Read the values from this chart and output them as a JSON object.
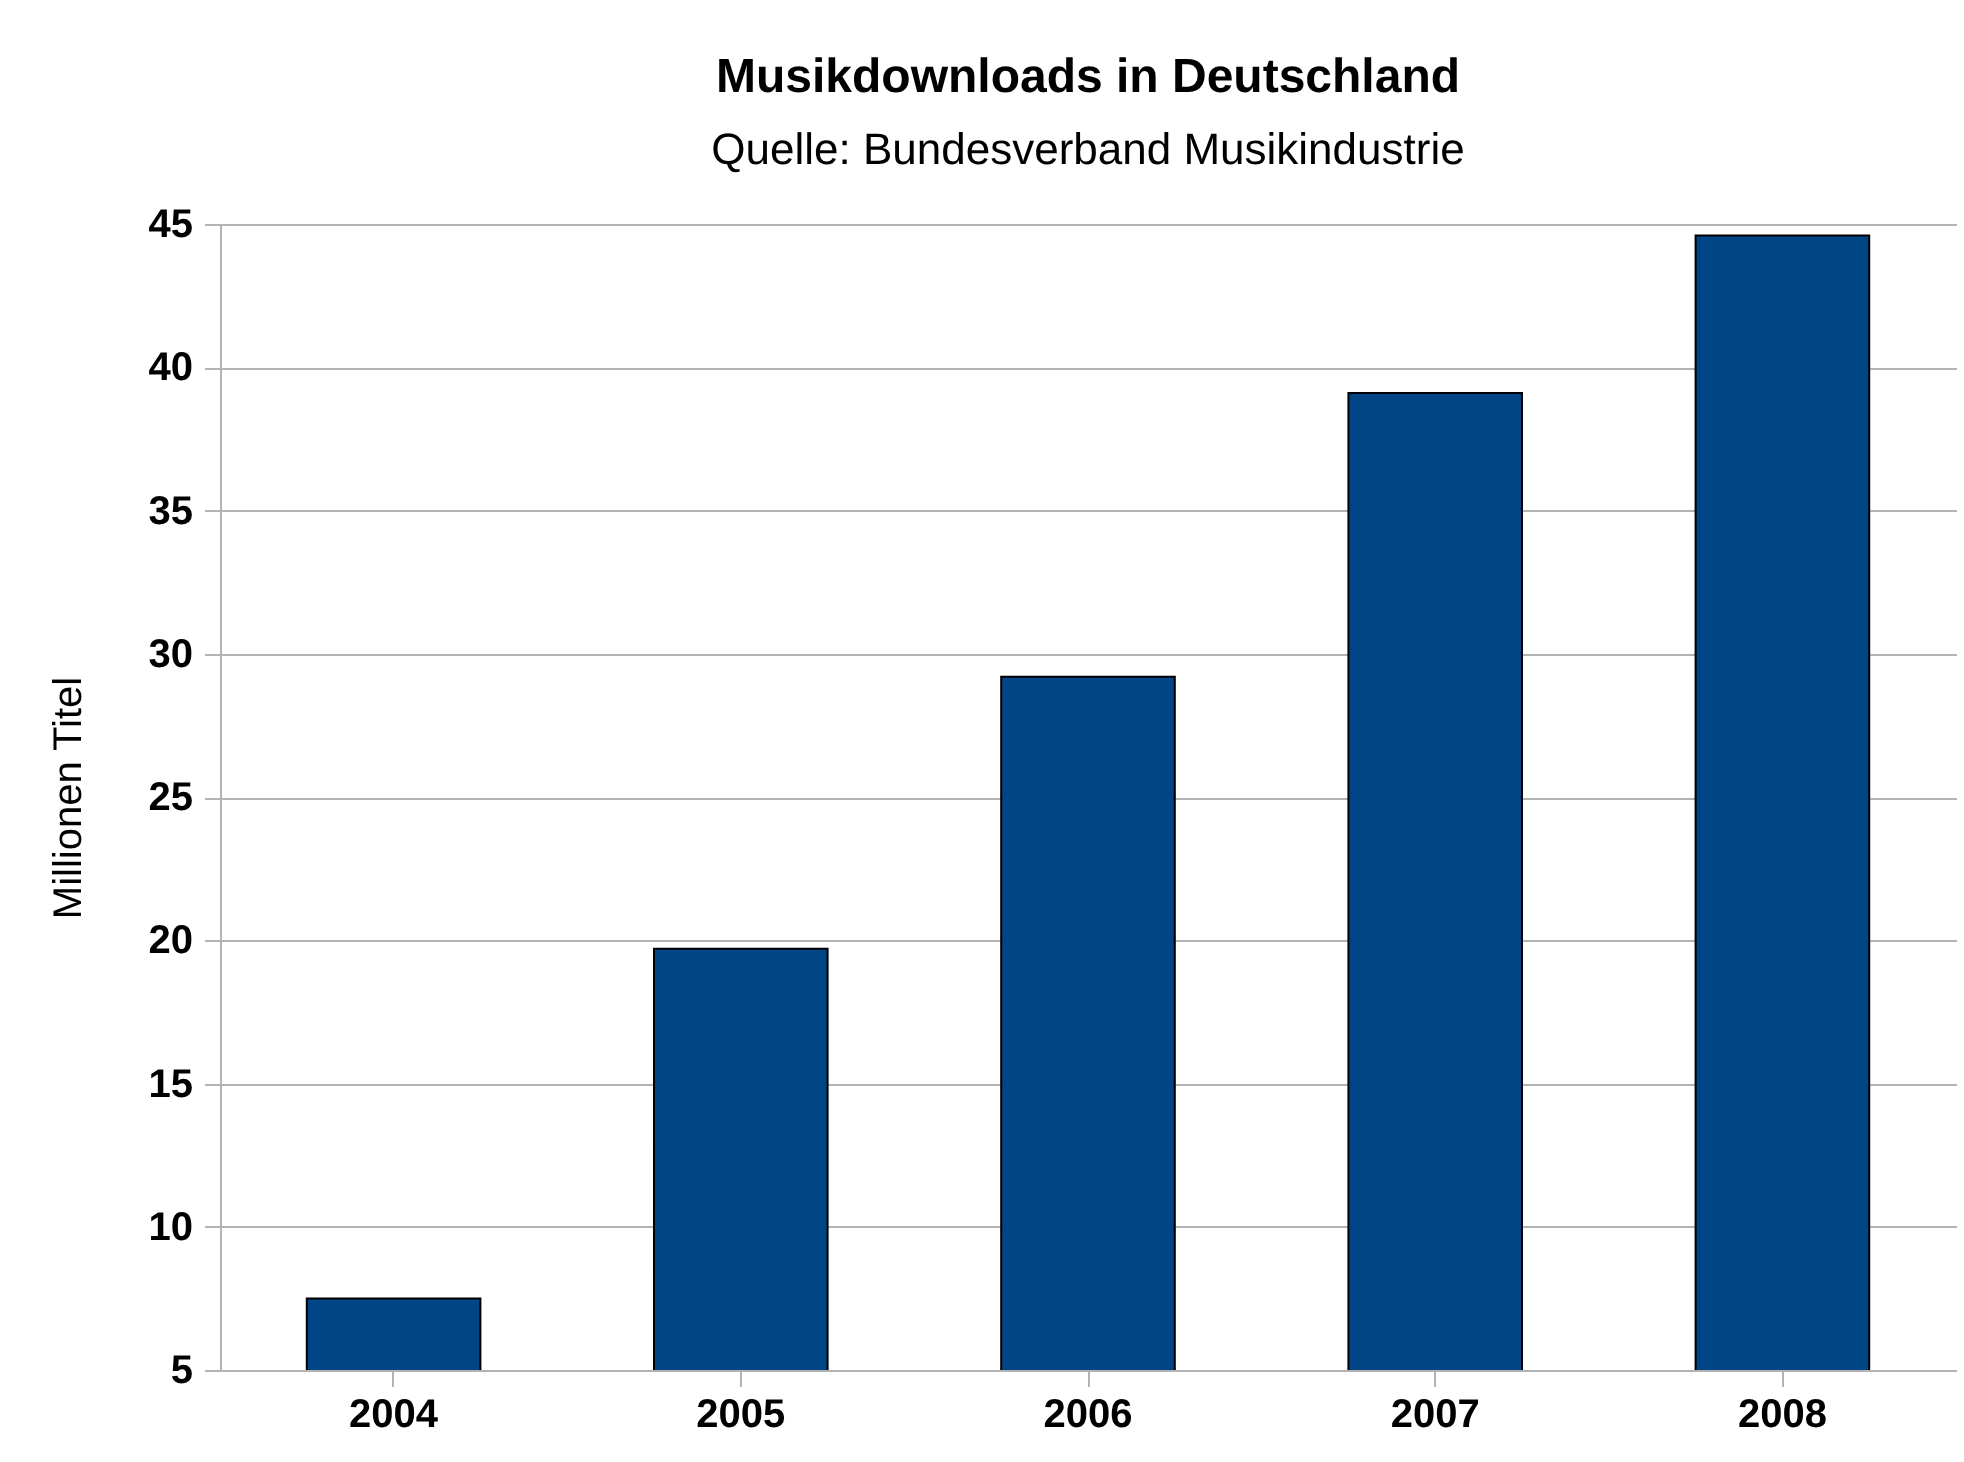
{
  "chart_data": {
    "type": "bar",
    "title": "Musikdownloads in Deutschland",
    "subtitle": "Quelle: Bundesverband Musikindustrie",
    "ylabel": "Millionen Titel",
    "categories": [
      "2004",
      "2005",
      "2006",
      "2007",
      "2008"
    ],
    "values": [
      7.5,
      19.7,
      29.2,
      39.1,
      44.6
    ],
    "color": "#004586",
    "ylim": [
      5,
      45
    ],
    "yticks": [
      5,
      10,
      15,
      20,
      25,
      30,
      35,
      40,
      45
    ],
    "grid": "y"
  }
}
